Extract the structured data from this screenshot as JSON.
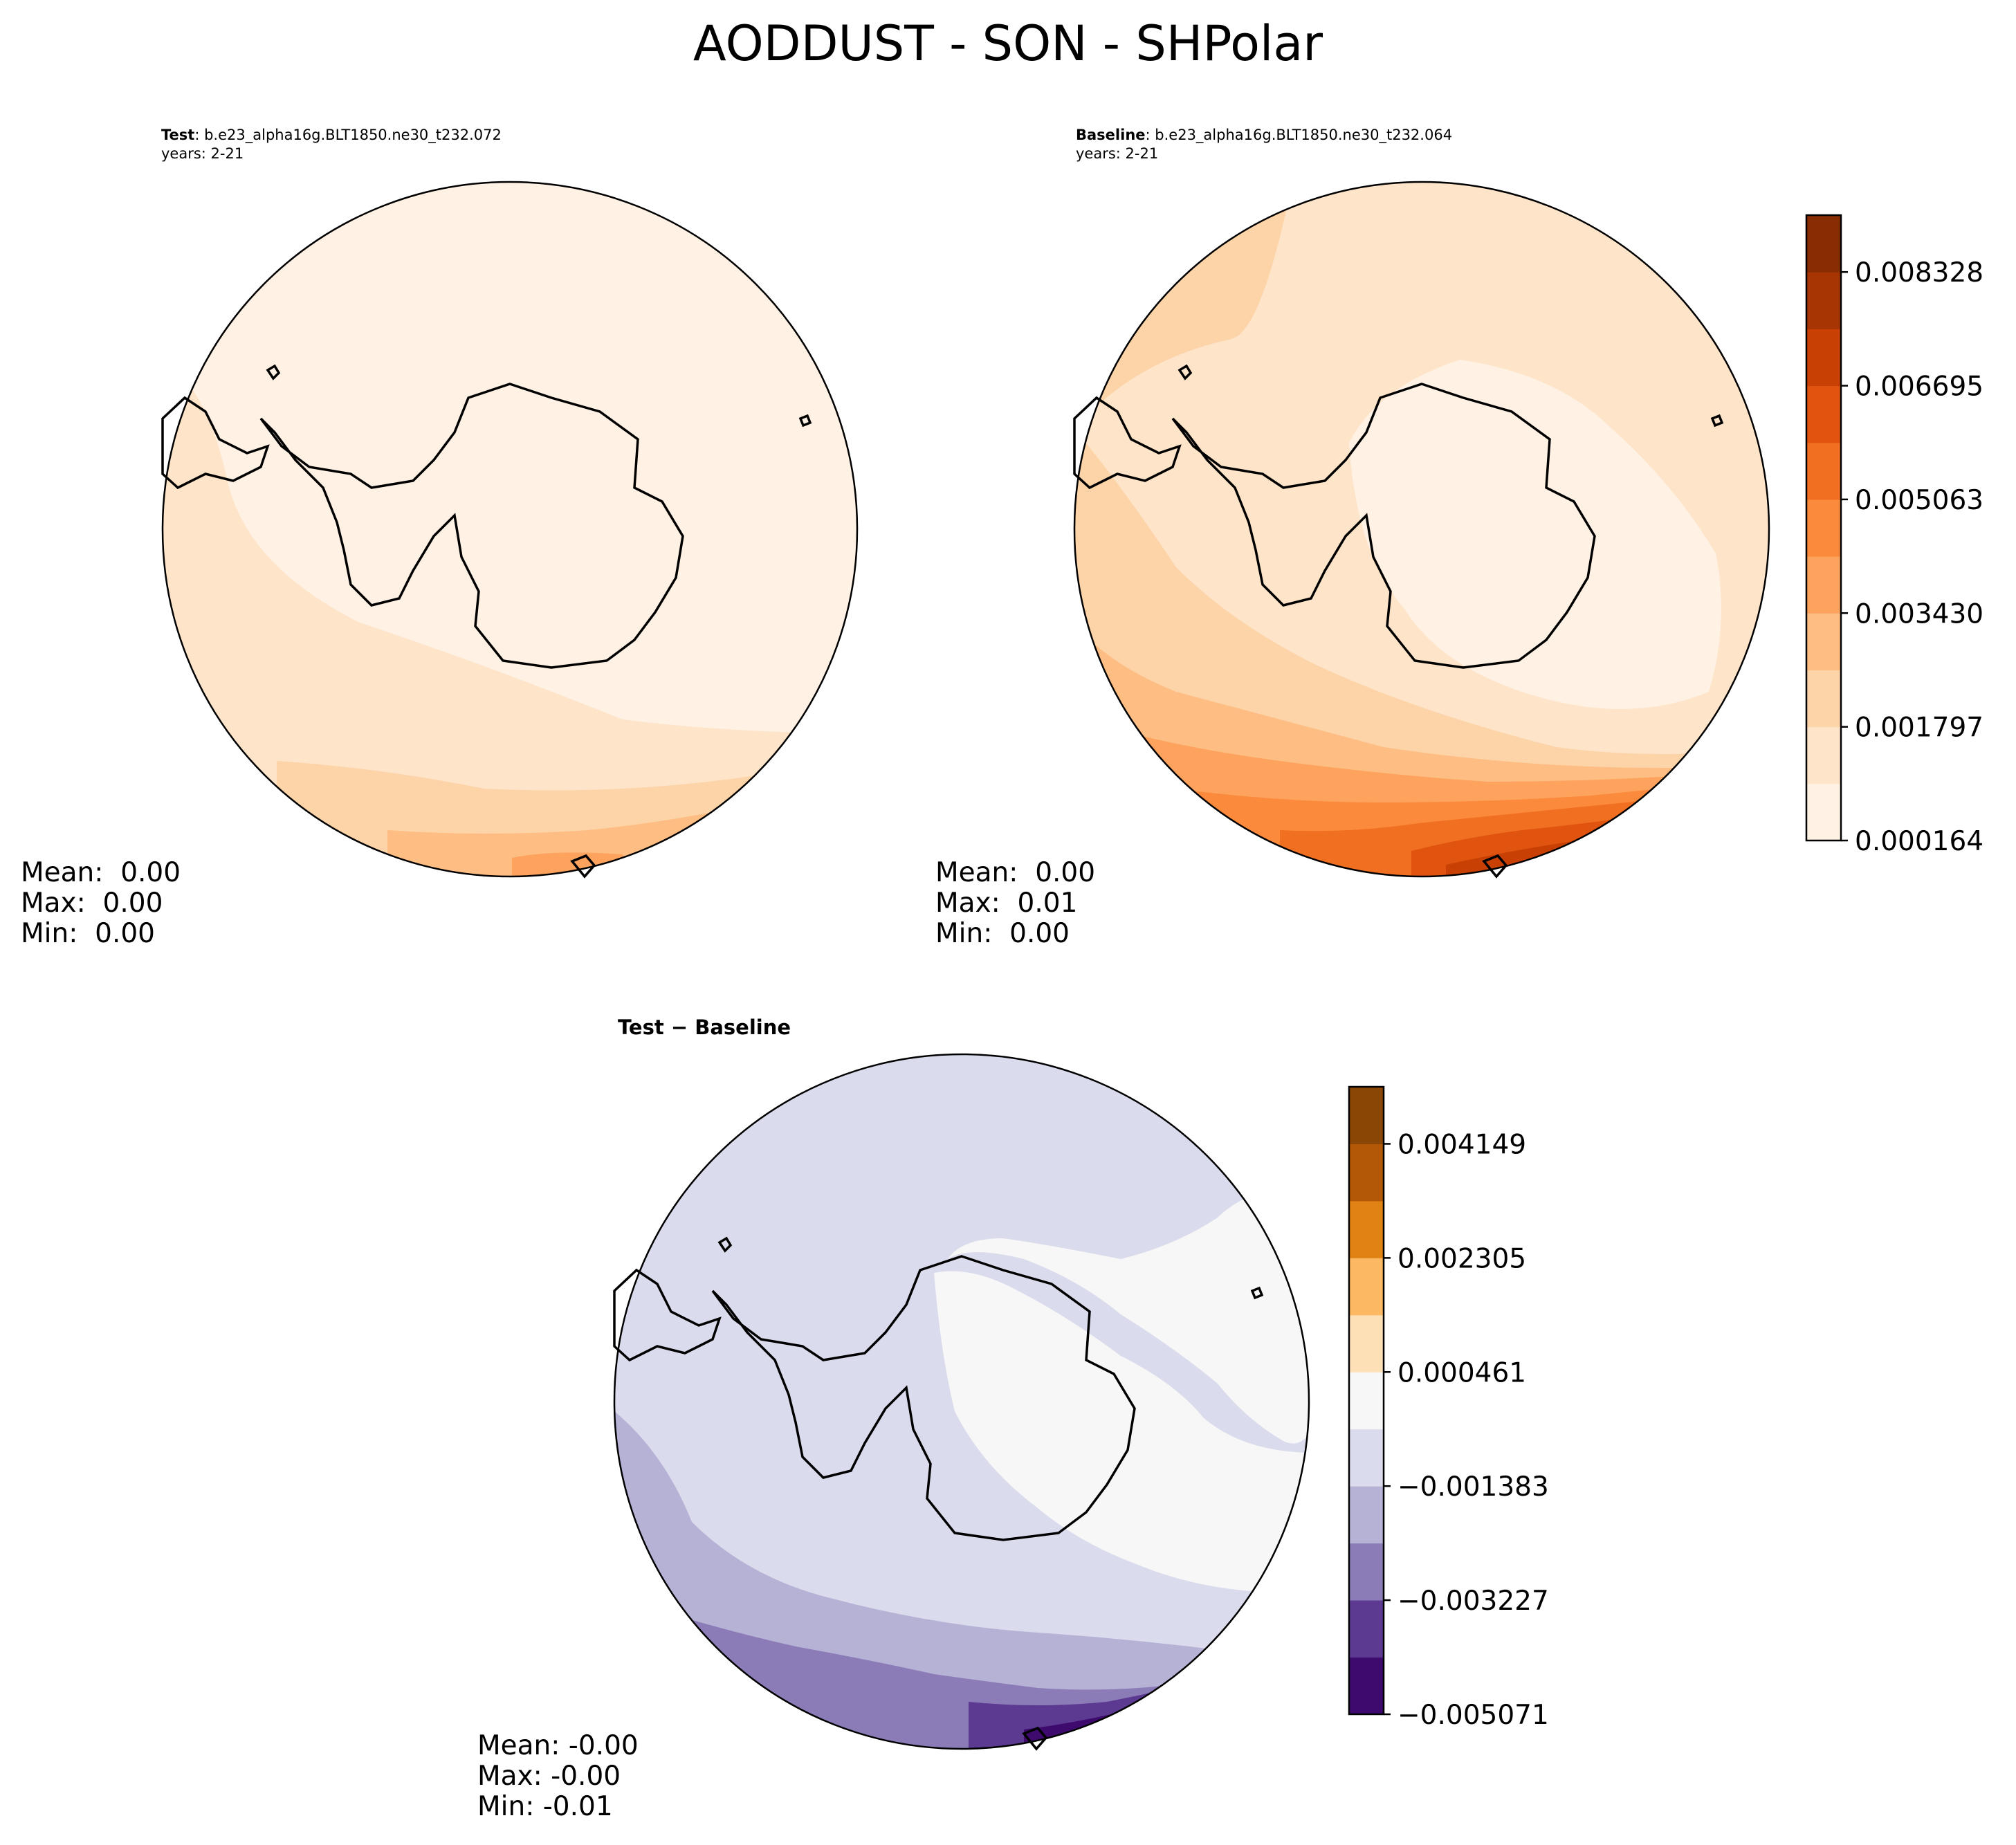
{
  "figure": {
    "title": "AODDUST - SON - SHPolar"
  },
  "panels": {
    "test": {
      "label": "Test",
      "case": "b.e23_alpha16g.BLT1850.ne30_t232.072",
      "years": "years: 2-21",
      "stats": {
        "mean": "Mean:  0.00",
        "max": "Max:  0.00",
        "min": "Min:  0.00"
      }
    },
    "baseline": {
      "label": "Baseline",
      "case": "b.e23_alpha16g.BLT1850.ne30_t232.064",
      "years": "years: 2-21",
      "stats": {
        "mean": "Mean:  0.00",
        "max": "Max:  0.01",
        "min": "Min:  0.00"
      }
    },
    "diff": {
      "title": "Test − Baseline",
      "stats": {
        "mean": "Mean: -0.00",
        "max": "Max: -0.00",
        "min": "Min: -0.01"
      }
    }
  },
  "colorbars": {
    "main": {
      "ticks": [
        "0.000164",
        "0.001797",
        "0.003430",
        "0.005063",
        "0.006695",
        "0.008328"
      ],
      "colors": [
        "#fff1e3",
        "#fee4c9",
        "#fdd3a8",
        "#fdbd83",
        "#fda35d",
        "#fb8a3c",
        "#f06f20",
        "#e05410",
        "#c84003",
        "#a63503",
        "#872c03"
      ]
    },
    "diff": {
      "ticks": [
        "−0.005071",
        "−0.003227",
        "−0.001383",
        "0.000461",
        "0.002305",
        "0.004149"
      ],
      "colors": [
        "#3f0a6e",
        "#5d3a92",
        "#8b7bb7",
        "#b6b2d6",
        "#dadbec",
        "#f7f7f7",
        "#fee0b6",
        "#fdb863",
        "#e08214",
        "#b35806",
        "#8a4605"
      ]
    }
  },
  "map_colors": {
    "test": [
      "#fff1e3",
      "#fee4c9",
      "#fdd3a8",
      "#fdbd83",
      "#fda35d"
    ],
    "baseline": [
      "#fff1e3",
      "#fee4c9",
      "#fdd3a8",
      "#fdbd83",
      "#fda35d",
      "#fb8a3c",
      "#f06f20",
      "#e05410",
      "#c84003",
      "#a63503"
    ],
    "diff": [
      "#f7f7f7",
      "#dadbec",
      "#b6b2d6",
      "#8b7bb7",
      "#5d3a92",
      "#3f0a6e"
    ]
  }
}
